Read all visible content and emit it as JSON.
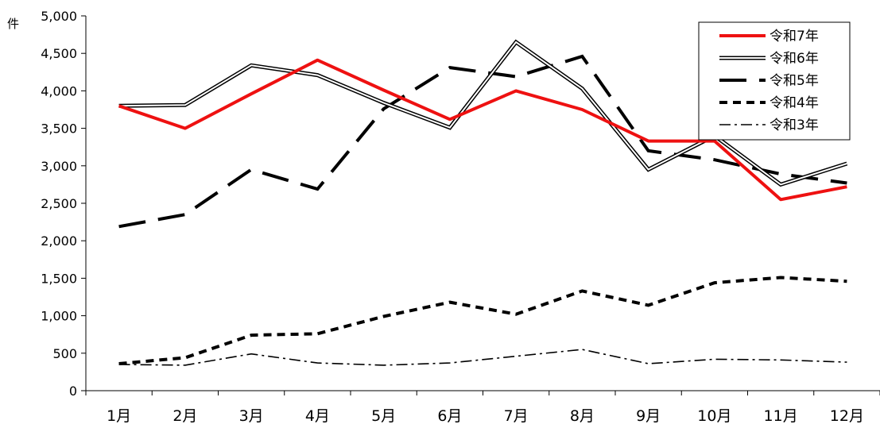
{
  "chart_data": {
    "type": "line",
    "unit_label": "件",
    "categories": [
      "1月",
      "2月",
      "3月",
      "4月",
      "5月",
      "6月",
      "7月",
      "8月",
      "9月",
      "10月",
      "11月",
      "12月"
    ],
    "ylim": [
      0,
      5000
    ],
    "yticks": [
      0,
      500,
      1000,
      1500,
      2000,
      2500,
      3000,
      3500,
      4000,
      4500,
      5000
    ],
    "ytick_labels": [
      "0",
      "500",
      "1,000",
      "1,500",
      "2,000",
      "2,500",
      "3,000",
      "3,500",
      "4,000",
      "4,500",
      "5,000"
    ],
    "grid": false,
    "legend_position": "top-right",
    "series": [
      {
        "name": "令和7年",
        "style": "red-solid",
        "color": "#ee1111",
        "values": [
          3800,
          3500,
          3960,
          4410,
          4010,
          3620,
          4000,
          3750,
          3330,
          3330,
          2550,
          2720
        ]
      },
      {
        "name": "令和6年",
        "style": "double-line",
        "color": "#000000",
        "values": [
          3800,
          3810,
          4340,
          4210,
          3840,
          3510,
          4650,
          4030,
          2950,
          3400,
          2750,
          3030
        ]
      },
      {
        "name": "令和5年",
        "style": "long-dash",
        "color": "#000000",
        "values": [
          2190,
          2350,
          2950,
          2690,
          3760,
          4310,
          4190,
          4460,
          3200,
          3080,
          2890,
          2770
        ]
      },
      {
        "name": "令和4年",
        "style": "short-dash",
        "color": "#000000",
        "values": [
          360,
          440,
          740,
          760,
          990,
          1180,
          1020,
          1330,
          1140,
          1440,
          1510,
          1460
        ]
      },
      {
        "name": "令和3年",
        "style": "dash-dot",
        "color": "#000000",
        "values": [
          350,
          340,
          490,
          370,
          340,
          370,
          460,
          550,
          360,
          420,
          410,
          380
        ]
      }
    ]
  }
}
